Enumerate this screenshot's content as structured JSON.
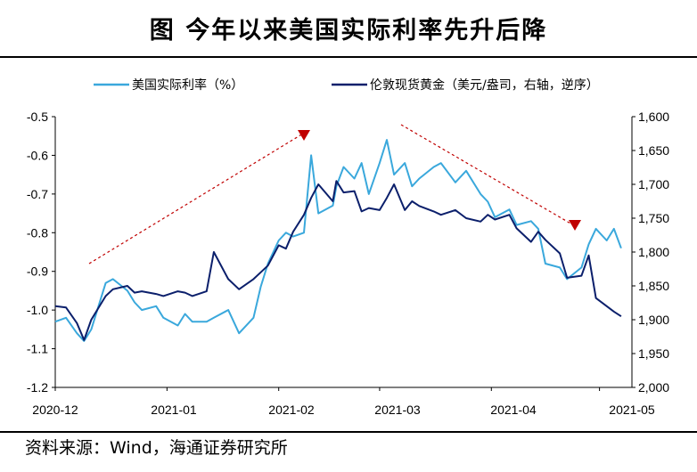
{
  "header": {
    "title": "图 今年以来美国实际利率先升后降"
  },
  "footer": {
    "source": "资料来源：Wind，海通证券研究所"
  },
  "colors": {
    "real_rate": "#3aa8dc",
    "gold": "#0b1f6b",
    "arrow": "#c00000"
  },
  "chart_data": {
    "type": "line",
    "title": "图 今年以来美国实际利率先升后降",
    "legend_position": "top",
    "x_ticks": [
      "2020-12",
      "2021-01",
      "2021-02",
      "2021-03",
      "2021-04",
      "2021-05"
    ],
    "y_left": {
      "ylim": [
        -1.2,
        -0.5
      ],
      "ticks": [
        "-0.5",
        "-0.6",
        "-0.7",
        "-0.8",
        "-0.9",
        "-1.0",
        "-1.1",
        "-1.2"
      ]
    },
    "y_right": {
      "ylim": [
        1600,
        2000
      ],
      "inverted": true,
      "ticks": [
        "1,600",
        "1,650",
        "1,700",
        "1,750",
        "1,800",
        "1,850",
        "1,900",
        "1,950",
        "2,000"
      ]
    },
    "series": [
      {
        "name": "美国实际利率（%）",
        "axis": "left",
        "x": [
          "2020-12-01",
          "2020-12-04",
          "2020-12-07",
          "2020-12-09",
          "2020-12-11",
          "2020-12-15",
          "2020-12-17",
          "2020-12-21",
          "2020-12-23",
          "2020-12-25",
          "2020-12-29",
          "2020-12-31",
          "2021-01-04",
          "2021-01-06",
          "2021-01-08",
          "2021-01-12",
          "2021-01-14",
          "2021-01-18",
          "2021-01-21",
          "2021-01-25",
          "2021-01-27",
          "2021-01-29",
          "2021-02-01",
          "2021-02-03",
          "2021-02-05",
          "2021-02-08",
          "2021-02-10",
          "2021-02-12",
          "2021-02-16",
          "2021-02-17",
          "2021-02-19",
          "2021-02-22",
          "2021-02-24",
          "2021-02-26",
          "2021-03-01",
          "2021-03-03",
          "2021-03-05",
          "2021-03-08",
          "2021-03-10",
          "2021-03-12",
          "2021-03-16",
          "2021-03-18",
          "2021-03-22",
          "2021-03-25",
          "2021-03-29",
          "2021-03-31",
          "2021-04-02",
          "2021-04-06",
          "2021-04-08",
          "2021-04-12",
          "2021-04-14",
          "2021-04-16",
          "2021-04-20",
          "2021-04-22",
          "2021-04-26",
          "2021-04-28",
          "2021-04-30",
          "2021-05-03",
          "2021-05-05",
          "2021-05-07"
        ],
        "y": [
          -1.03,
          -1.02,
          -1.06,
          -1.08,
          -1.05,
          -0.93,
          -0.92,
          -0.95,
          -0.98,
          -1.0,
          -0.99,
          -1.02,
          -1.04,
          -1.01,
          -1.03,
          -1.03,
          -1.02,
          -1.0,
          -1.06,
          -1.02,
          -0.94,
          -0.88,
          -0.82,
          -0.8,
          -0.81,
          -0.8,
          -0.6,
          -0.75,
          -0.73,
          -0.68,
          -0.63,
          -0.66,
          -0.62,
          -0.7,
          -0.62,
          -0.56,
          -0.65,
          -0.62,
          -0.68,
          -0.66,
          -0.63,
          -0.62,
          -0.67,
          -0.64,
          -0.7,
          -0.72,
          -0.76,
          -0.74,
          -0.78,
          -0.77,
          -0.79,
          -0.88,
          -0.89,
          -0.92,
          -0.89,
          -0.83,
          -0.79,
          -0.82,
          -0.79,
          -0.84
        ]
      },
      {
        "name": "伦敦现货黄金（美元/盎司，右轴，逆序）",
        "axis": "right",
        "x": [
          "2020-12-01",
          "2020-12-04",
          "2020-12-07",
          "2020-12-09",
          "2020-12-11",
          "2020-12-15",
          "2020-12-17",
          "2020-12-21",
          "2020-12-23",
          "2020-12-25",
          "2020-12-29",
          "2020-12-31",
          "2021-01-04",
          "2021-01-06",
          "2021-01-08",
          "2021-01-12",
          "2021-01-14",
          "2021-01-18",
          "2021-01-21",
          "2021-01-25",
          "2021-01-27",
          "2021-01-29",
          "2021-02-01",
          "2021-02-03",
          "2021-02-05",
          "2021-02-08",
          "2021-02-10",
          "2021-02-12",
          "2021-02-16",
          "2021-02-17",
          "2021-02-19",
          "2021-02-22",
          "2021-02-24",
          "2021-02-26",
          "2021-03-01",
          "2021-03-03",
          "2021-03-05",
          "2021-03-08",
          "2021-03-10",
          "2021-03-12",
          "2021-03-16",
          "2021-03-18",
          "2021-03-22",
          "2021-03-25",
          "2021-03-29",
          "2021-03-31",
          "2021-04-02",
          "2021-04-06",
          "2021-04-08",
          "2021-04-12",
          "2021-04-14",
          "2021-04-16",
          "2021-04-20",
          "2021-04-22",
          "2021-04-26",
          "2021-04-28",
          "2021-04-30",
          "2021-05-03",
          "2021-05-05",
          "2021-05-07"
        ],
        "y": [
          1880,
          1882,
          1905,
          1930,
          1900,
          1865,
          1855,
          1850,
          1860,
          1858,
          1862,
          1865,
          1858,
          1860,
          1865,
          1858,
          1800,
          1840,
          1855,
          1840,
          1830,
          1820,
          1790,
          1795,
          1770,
          1745,
          1720,
          1700,
          1725,
          1695,
          1712,
          1710,
          1740,
          1735,
          1738,
          1720,
          1700,
          1738,
          1725,
          1732,
          1740,
          1745,
          1738,
          1750,
          1755,
          1745,
          1752,
          1745,
          1765,
          1785,
          1770,
          1782,
          1802,
          1838,
          1835,
          1805,
          1868,
          1880,
          1888,
          1895
        ]
      }
    ]
  }
}
